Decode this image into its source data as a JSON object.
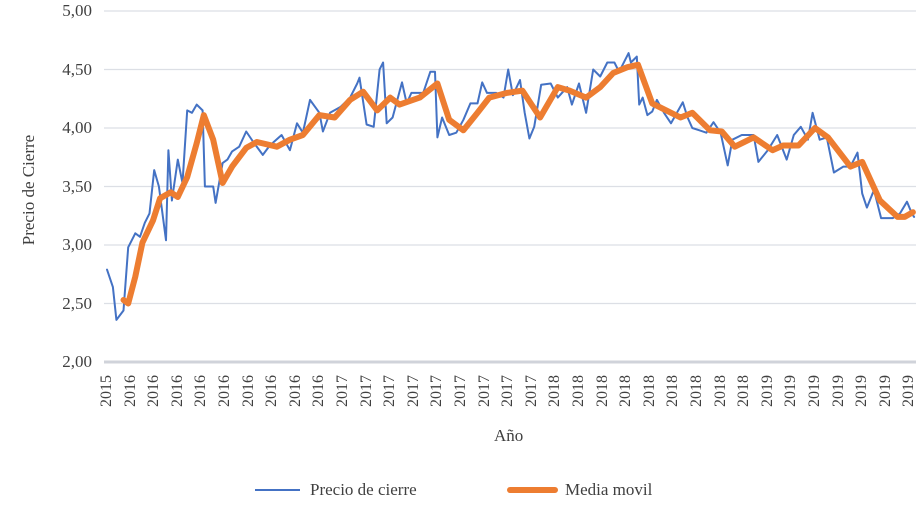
{
  "chart_data": {
    "type": "line",
    "title": "",
    "xlabel": "Año",
    "ylabel": "Precio de Cierre",
    "ylim": [
      2.0,
      5.0
    ],
    "yticks": [
      "2,00",
      "2,50",
      "3,00",
      "3,50",
      "4,00",
      "4,50",
      "5,00"
    ],
    "xtick_labels": [
      "2015",
      "2016",
      "2016",
      "2016",
      "2016",
      "2016",
      "2016",
      "2016",
      "2016",
      "2016",
      "2017",
      "2017",
      "2017",
      "2017",
      "2017",
      "2017",
      "2017",
      "2017",
      "2017",
      "2018",
      "2018",
      "2018",
      "2018",
      "2018",
      "2018",
      "2018",
      "2018",
      "2018",
      "2019",
      "2019",
      "2019",
      "2019",
      "2019",
      "2019",
      "2019"
    ],
    "grid": true,
    "legend": "bottom",
    "series": [
      {
        "name": "Precio de cierre",
        "color": "#4472C4",
        "points": [
          [
            0.0,
            2.79
          ],
          [
            0.25,
            2.64
          ],
          [
            0.4,
            2.36
          ],
          [
            0.7,
            2.44
          ],
          [
            0.9,
            2.98
          ],
          [
            1.2,
            3.1
          ],
          [
            1.4,
            3.07
          ],
          [
            1.6,
            3.19
          ],
          [
            1.8,
            3.27
          ],
          [
            2.0,
            3.64
          ],
          [
            2.2,
            3.5
          ],
          [
            2.5,
            3.04
          ],
          [
            2.6,
            3.81
          ],
          [
            2.75,
            3.38
          ],
          [
            3.0,
            3.73
          ],
          [
            3.2,
            3.53
          ],
          [
            3.4,
            4.15
          ],
          [
            3.6,
            4.13
          ],
          [
            3.8,
            4.2
          ],
          [
            4.05,
            4.15
          ],
          [
            4.15,
            3.5
          ],
          [
            4.5,
            3.5
          ],
          [
            4.6,
            3.36
          ],
          [
            4.9,
            3.7
          ],
          [
            5.1,
            3.73
          ],
          [
            5.3,
            3.8
          ],
          [
            5.6,
            3.84
          ],
          [
            5.9,
            3.97
          ],
          [
            6.2,
            3.88
          ],
          [
            6.6,
            3.77
          ],
          [
            6.9,
            3.85
          ],
          [
            7.4,
            3.94
          ],
          [
            7.75,
            3.81
          ],
          [
            8.05,
            4.04
          ],
          [
            8.3,
            3.96
          ],
          [
            8.6,
            4.24
          ],
          [
            9.0,
            4.13
          ],
          [
            9.15,
            3.97
          ],
          [
            9.45,
            4.13
          ],
          [
            9.9,
            4.18
          ],
          [
            10.3,
            4.26
          ],
          [
            10.6,
            4.38
          ],
          [
            10.7,
            4.43
          ],
          [
            11.0,
            4.03
          ],
          [
            11.3,
            4.01
          ],
          [
            11.55,
            4.5
          ],
          [
            11.7,
            4.56
          ],
          [
            11.85,
            4.04
          ],
          [
            12.1,
            4.09
          ],
          [
            12.5,
            4.39
          ],
          [
            12.7,
            4.21
          ],
          [
            12.9,
            4.3
          ],
          [
            13.4,
            4.3
          ],
          [
            13.7,
            4.48
          ],
          [
            13.9,
            4.48
          ],
          [
            14.0,
            3.92
          ],
          [
            14.2,
            4.09
          ],
          [
            14.5,
            3.94
          ],
          [
            14.8,
            3.96
          ],
          [
            15.1,
            4.07
          ],
          [
            15.4,
            4.21
          ],
          [
            15.7,
            4.21
          ],
          [
            15.9,
            4.39
          ],
          [
            16.1,
            4.3
          ],
          [
            16.5,
            4.3
          ],
          [
            16.8,
            4.26
          ],
          [
            17.0,
            4.5
          ],
          [
            17.2,
            4.28
          ],
          [
            17.5,
            4.41
          ],
          [
            17.7,
            4.13
          ],
          [
            17.9,
            3.91
          ],
          [
            18.1,
            4.01
          ],
          [
            18.4,
            4.37
          ],
          [
            18.8,
            4.38
          ],
          [
            19.1,
            4.26
          ],
          [
            19.5,
            4.35
          ],
          [
            19.7,
            4.2
          ],
          [
            20.0,
            4.38
          ],
          [
            20.3,
            4.13
          ],
          [
            20.6,
            4.5
          ],
          [
            20.9,
            4.44
          ],
          [
            21.2,
            4.56
          ],
          [
            21.5,
            4.56
          ],
          [
            21.7,
            4.48
          ],
          [
            22.1,
            4.64
          ],
          [
            22.2,
            4.56
          ],
          [
            22.45,
            4.61
          ],
          [
            22.55,
            4.2
          ],
          [
            22.7,
            4.26
          ],
          [
            22.9,
            4.11
          ],
          [
            23.1,
            4.14
          ],
          [
            23.3,
            4.24
          ],
          [
            23.6,
            4.13
          ],
          [
            23.9,
            4.04
          ],
          [
            24.4,
            4.22
          ],
          [
            24.6,
            4.09
          ],
          [
            24.8,
            4.0
          ],
          [
            25.1,
            3.98
          ],
          [
            25.4,
            3.96
          ],
          [
            25.7,
            4.05
          ],
          [
            26.0,
            3.96
          ],
          [
            26.3,
            3.68
          ],
          [
            26.5,
            3.9
          ],
          [
            26.9,
            3.94
          ],
          [
            27.4,
            3.94
          ],
          [
            27.6,
            3.71
          ],
          [
            28.0,
            3.81
          ],
          [
            28.4,
            3.94
          ],
          [
            28.8,
            3.73
          ],
          [
            29.1,
            3.94
          ],
          [
            29.4,
            4.01
          ],
          [
            29.7,
            3.9
          ],
          [
            29.9,
            4.13
          ],
          [
            30.2,
            3.9
          ],
          [
            30.5,
            3.92
          ],
          [
            30.8,
            3.62
          ],
          [
            31.2,
            3.67
          ],
          [
            31.5,
            3.67
          ],
          [
            31.8,
            3.79
          ],
          [
            32.0,
            3.44
          ],
          [
            32.2,
            3.32
          ],
          [
            32.5,
            3.47
          ],
          [
            32.8,
            3.23
          ],
          [
            33.3,
            3.23
          ],
          [
            33.6,
            3.27
          ],
          [
            33.9,
            3.37
          ],
          [
            34.1,
            3.27
          ],
          [
            34.2,
            3.24
          ]
        ]
      },
      {
        "name": "Media movil",
        "color": "#ED7D31",
        "points": [
          [
            0.7,
            2.53
          ],
          [
            0.9,
            2.5
          ],
          [
            1.2,
            2.73
          ],
          [
            1.5,
            3.02
          ],
          [
            1.95,
            3.21
          ],
          [
            2.25,
            3.4
          ],
          [
            2.7,
            3.45
          ],
          [
            3.0,
            3.41
          ],
          [
            3.4,
            3.58
          ],
          [
            3.8,
            3.87
          ],
          [
            4.1,
            4.11
          ],
          [
            4.5,
            3.9
          ],
          [
            4.9,
            3.53
          ],
          [
            5.3,
            3.67
          ],
          [
            5.9,
            3.83
          ],
          [
            6.35,
            3.88
          ],
          [
            7.2,
            3.84
          ],
          [
            7.75,
            3.9
          ],
          [
            8.3,
            3.94
          ],
          [
            9.0,
            4.11
          ],
          [
            9.65,
            4.09
          ],
          [
            10.3,
            4.24
          ],
          [
            10.85,
            4.31
          ],
          [
            11.45,
            4.15
          ],
          [
            12.0,
            4.26
          ],
          [
            12.4,
            4.2
          ],
          [
            13.25,
            4.26
          ],
          [
            14.0,
            4.38
          ],
          [
            14.5,
            4.07
          ],
          [
            15.1,
            3.98
          ],
          [
            15.7,
            4.13
          ],
          [
            16.2,
            4.26
          ],
          [
            16.95,
            4.3
          ],
          [
            17.6,
            4.32
          ],
          [
            18.35,
            4.09
          ],
          [
            19.1,
            4.35
          ],
          [
            19.6,
            4.32
          ],
          [
            20.3,
            4.26
          ],
          [
            20.9,
            4.35
          ],
          [
            21.45,
            4.47
          ],
          [
            22.05,
            4.52
          ],
          [
            22.5,
            4.54
          ],
          [
            23.1,
            4.21
          ],
          [
            23.7,
            4.15
          ],
          [
            24.3,
            4.09
          ],
          [
            24.8,
            4.13
          ],
          [
            25.55,
            3.98
          ],
          [
            26.05,
            3.97
          ],
          [
            26.6,
            3.84
          ],
          [
            27.4,
            3.92
          ],
          [
            28.2,
            3.81
          ],
          [
            28.65,
            3.85
          ],
          [
            29.3,
            3.85
          ],
          [
            30.0,
            4.0
          ],
          [
            30.55,
            3.92
          ],
          [
            31.5,
            3.67
          ],
          [
            32.0,
            3.71
          ],
          [
            32.75,
            3.38
          ],
          [
            33.5,
            3.24
          ],
          [
            33.8,
            3.24
          ],
          [
            34.15,
            3.28
          ]
        ]
      }
    ]
  }
}
